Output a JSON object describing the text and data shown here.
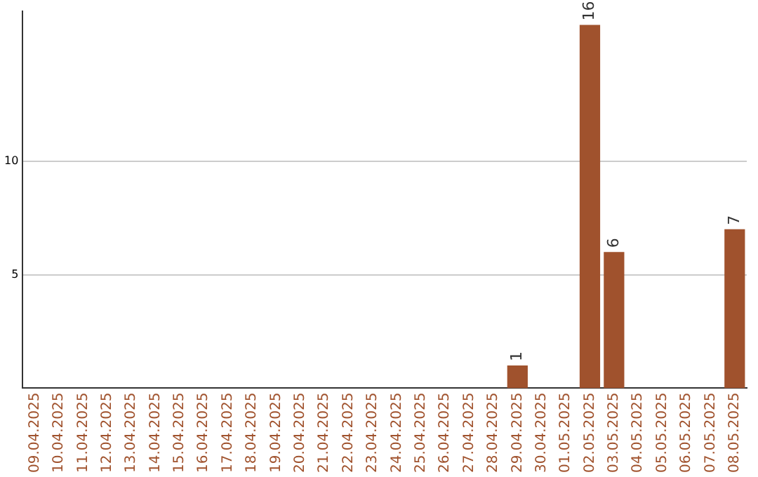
{
  "chart_data": {
    "type": "bar",
    "categories": [
      "09.04.2025",
      "10.04.2025",
      "11.04.2025",
      "12.04.2025",
      "13.04.2025",
      "14.04.2025",
      "15.04.2025",
      "16.04.2025",
      "17.04.2025",
      "18.04.2025",
      "19.04.2025",
      "20.04.2025",
      "21.04.2025",
      "22.04.2025",
      "23.04.2025",
      "24.04.2025",
      "25.04.2025",
      "26.04.2025",
      "27.04.2025",
      "28.04.2025",
      "29.04.2025",
      "30.04.2025",
      "01.05.2025",
      "02.05.2025",
      "03.05.2025",
      "04.05.2025",
      "05.05.2025",
      "06.05.2025",
      "07.05.2025",
      "08.05.2025"
    ],
    "values": [
      0,
      0,
      0,
      0,
      0,
      0,
      0,
      0,
      0,
      0,
      0,
      0,
      0,
      0,
      0,
      0,
      0,
      0,
      0,
      0,
      1,
      0,
      0,
      16,
      6,
      0,
      0,
      0,
      0,
      7
    ],
    "value_labels": [
      null,
      null,
      null,
      null,
      null,
      null,
      null,
      null,
      null,
      null,
      null,
      null,
      null,
      null,
      null,
      null,
      null,
      null,
      null,
      null,
      "1",
      null,
      null,
      "16",
      "6",
      null,
      null,
      null,
      null,
      "7"
    ],
    "color": "#a0522d",
    "ylim": [
      0,
      16.6
    ],
    "yticks": [
      5,
      10
    ],
    "grid": "y",
    "legend": false
  }
}
